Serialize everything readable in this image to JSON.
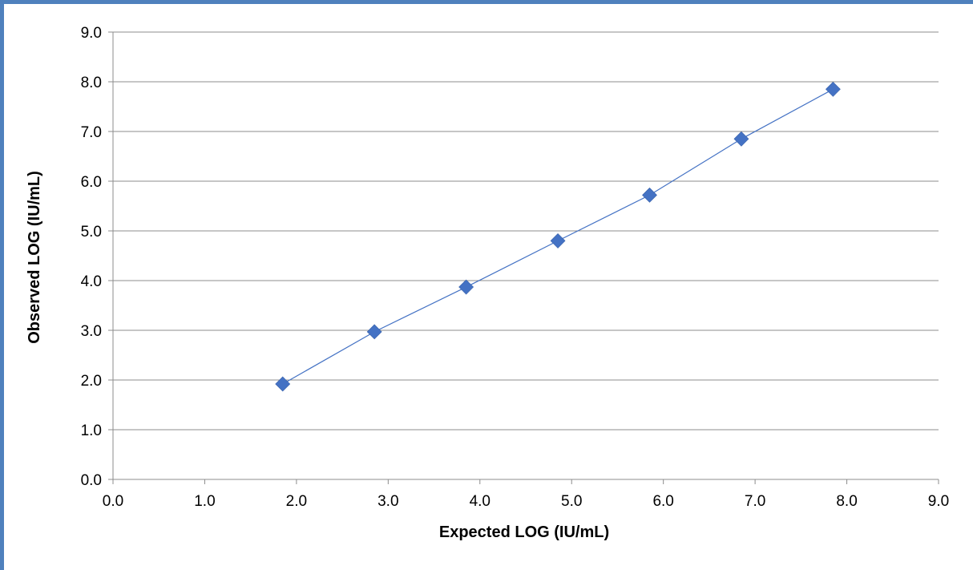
{
  "chart_data": {
    "type": "scatter",
    "title": "",
    "xlabel": "Expected LOG (IU/mL)",
    "ylabel": "Observed LOG (IU/mL)",
    "xlim": [
      0,
      9
    ],
    "ylim": [
      0,
      9
    ],
    "x_ticks": [
      "0.0",
      "1.0",
      "2.0",
      "3.0",
      "4.0",
      "5.0",
      "6.0",
      "7.0",
      "8.0",
      "9.0"
    ],
    "y_ticks": [
      "0.0",
      "1.0",
      "2.0",
      "3.0",
      "4.0",
      "5.0",
      "6.0",
      "7.0",
      "8.0",
      "9.0"
    ],
    "grid": "horizontal",
    "legend": "none",
    "marker": "diamond",
    "connected": true,
    "series": [
      {
        "x": [
          1.85,
          2.85,
          3.85,
          4.85,
          5.85,
          6.85,
          7.85
        ],
        "y": [
          1.92,
          2.97,
          3.87,
          4.8,
          5.72,
          6.85,
          7.85
        ],
        "color": "#4472c4"
      }
    ],
    "frame_color": "#4f81bd",
    "grid_color": "#8c8c8c",
    "line_color": "#4472c4"
  }
}
